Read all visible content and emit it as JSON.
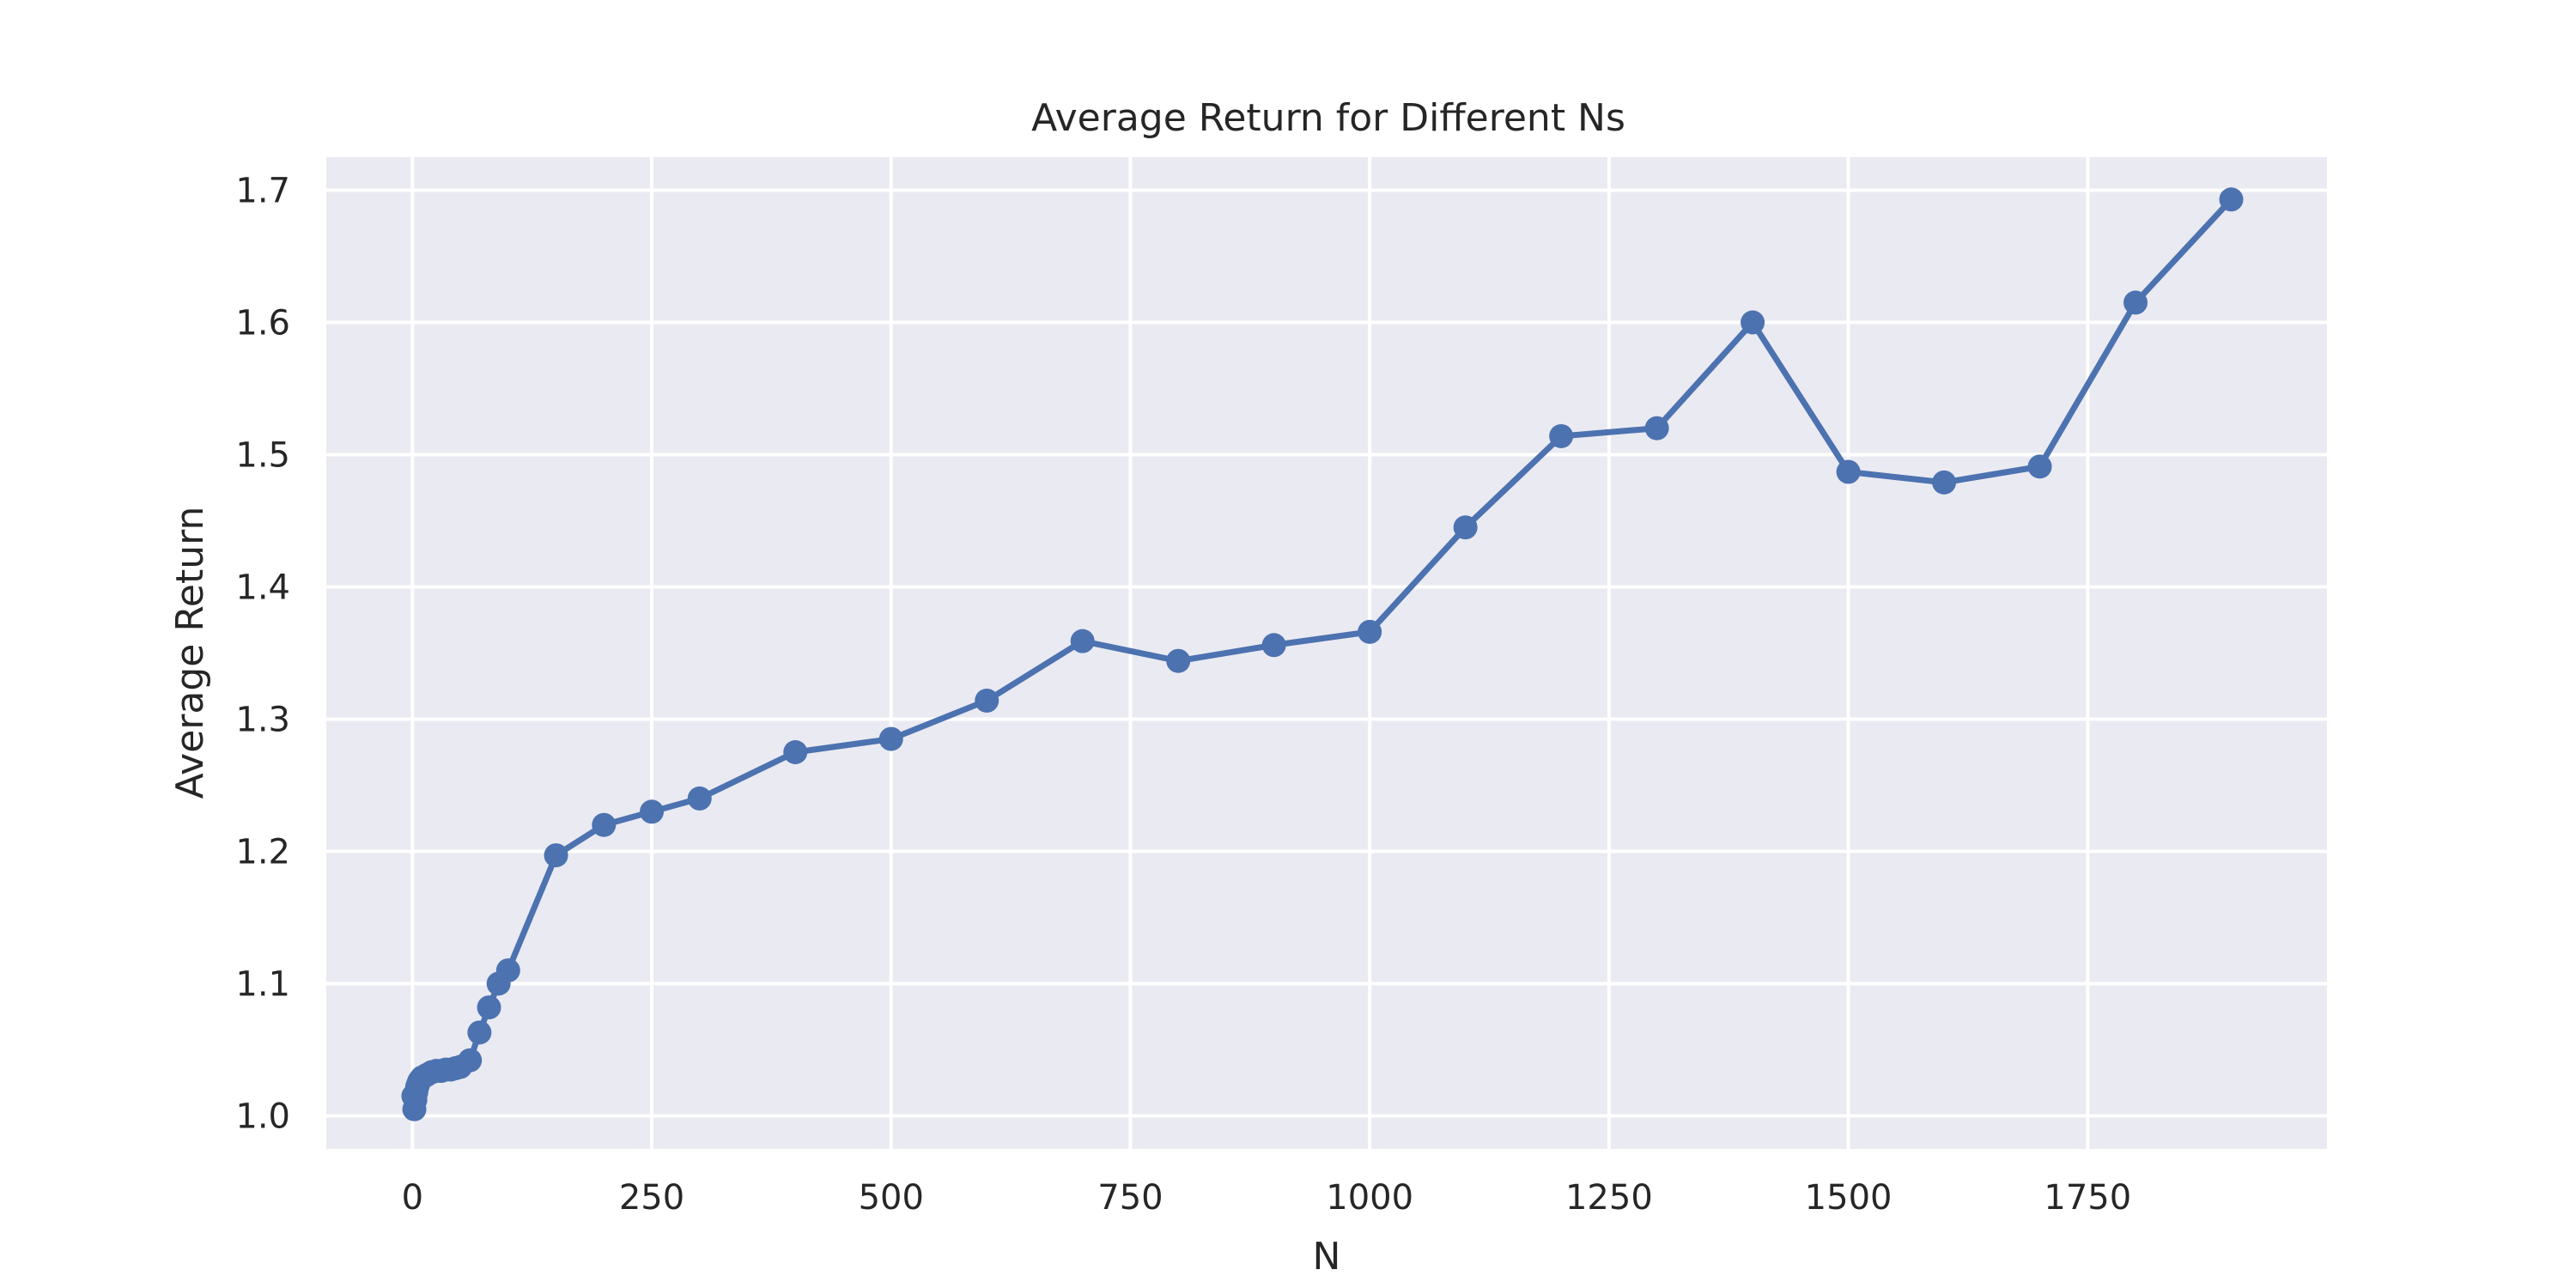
{
  "chart_data": {
    "type": "line",
    "title": "Average Return for Different Ns",
    "xlabel": "N",
    "ylabel": "Average Return",
    "xlim": [
      -90,
      2000
    ],
    "ylim": [
      0.975,
      1.725
    ],
    "xticks": [
      0,
      250,
      500,
      750,
      1000,
      1250,
      1500,
      1750
    ],
    "yticks": [
      1.0,
      1.1,
      1.2,
      1.3,
      1.4,
      1.5,
      1.6,
      1.7
    ],
    "xtick_labels": [
      "0",
      "250",
      "500",
      "750",
      "1000",
      "1250",
      "1500",
      "1750"
    ],
    "ytick_labels": [
      "1.0",
      "1.1",
      "1.2",
      "1.3",
      "1.4",
      "1.5",
      "1.6",
      "1.7"
    ],
    "grid": true,
    "legend": "none",
    "colors": {
      "background": "#eaeaf2",
      "grid": "#ffffff",
      "line": "#4c72b0",
      "text": "#262626"
    },
    "series": [
      {
        "x": [
          1,
          2,
          3,
          4,
          5,
          6,
          7,
          8,
          9,
          10,
          15,
          20,
          25,
          30,
          35,
          40,
          45,
          50,
          60,
          70,
          80,
          90,
          100,
          150,
          200,
          250,
          300,
          400,
          500,
          600,
          700,
          800,
          900,
          1000,
          1100,
          1200,
          1300,
          1400,
          1500,
          1600,
          1700,
          1800,
          1900
        ],
        "y": [
          1.015,
          1.005,
          1.012,
          1.018,
          1.022,
          1.024,
          1.026,
          1.027,
          1.028,
          1.029,
          1.031,
          1.033,
          1.034,
          1.034,
          1.035,
          1.035,
          1.036,
          1.037,
          1.042,
          1.063,
          1.082,
          1.1,
          1.11,
          1.197,
          1.22,
          1.23,
          1.24,
          1.275,
          1.285,
          1.314,
          1.359,
          1.344,
          1.356,
          1.366,
          1.445,
          1.514,
          1.52,
          1.6,
          1.487,
          1.479,
          1.491,
          1.615,
          1.693
        ]
      }
    ]
  }
}
